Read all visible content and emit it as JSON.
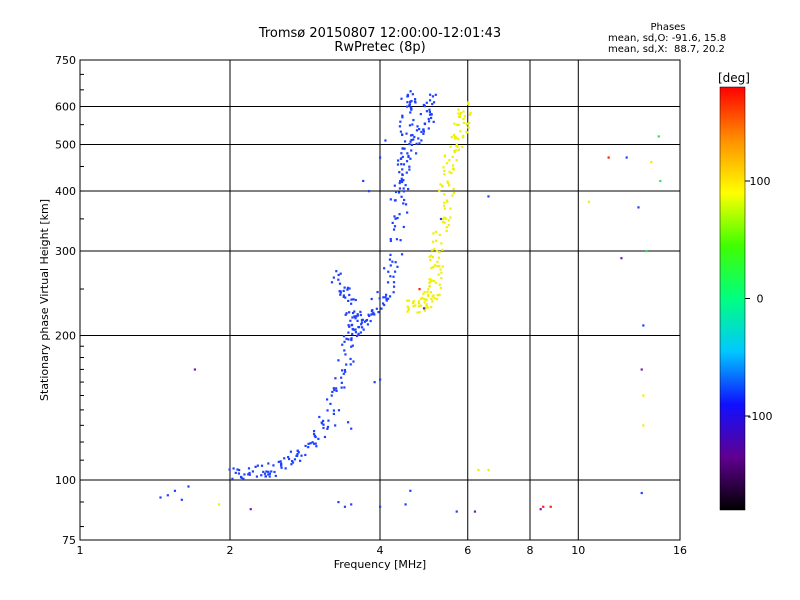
{
  "chart_data": {
    "type": "scatter",
    "title": "Tromsø 20150807 12:00:00-12:01:43",
    "subtitle": "RwPretec (8p)",
    "stats": {
      "heading": "Phases",
      "o_line": "mean, sd,O: -91.6, 15.8",
      "x_line": "mean, sd,X:  88.7, 20.2"
    },
    "xlabel": "Frequency [MHz]",
    "ylabel": "Stationary phase Virtual Height [km]",
    "x_scale": "log",
    "y_scale": "log",
    "xlim": [
      1,
      16
    ],
    "ylim": [
      75,
      750
    ],
    "x_ticks": [
      1,
      2,
      4,
      6,
      8,
      10,
      16
    ],
    "y_ticks": [
      75,
      100,
      200,
      300,
      400,
      500,
      600,
      750
    ],
    "grid": true,
    "colorbar": {
      "label": "[deg]",
      "range": [
        -180,
        180
      ],
      "ticks": [
        100,
        0,
        -100
      ],
      "colors": [
        "#000000",
        "#600090",
        "#1010ff",
        "#00c8ff",
        "#00ff80",
        "#40ff00",
        "#ffff00",
        "#ff9000",
        "#ff0000"
      ]
    },
    "series": [
      {
        "color": "#1e40ff",
        "traces": [
          [
            [
              2.0,
              102
            ],
            [
              2.2,
              104
            ],
            [
              2.4,
              105
            ],
            [
              2.6,
              108
            ],
            [
              2.8,
              113
            ],
            [
              3.0,
              124
            ],
            [
              3.2,
              140
            ],
            [
              3.35,
              165
            ],
            [
              3.45,
              190
            ],
            [
              3.55,
              205
            ],
            [
              3.7,
              212
            ],
            [
              3.9,
              225
            ],
            [
              4.1,
              245
            ],
            [
              4.3,
              290
            ],
            [
              4.4,
              360
            ],
            [
              4.45,
              450
            ],
            [
              4.5,
              540
            ],
            [
              4.55,
              620
            ],
            [
              4.6,
              640
            ]
          ],
          [
            [
              3.3,
              265
            ],
            [
              3.4,
              245
            ],
            [
              3.5,
              225
            ],
            [
              3.6,
              210
            ]
          ],
          [
            [
              4.3,
              380
            ],
            [
              4.4,
              430
            ],
            [
              4.6,
              500
            ],
            [
              4.8,
              540
            ],
            [
              5.0,
              580
            ],
            [
              5.15,
              640
            ]
          ]
        ],
        "scatter": [
          [
            1.45,
            92
          ],
          [
            1.5,
            93
          ],
          [
            1.55,
            95
          ],
          [
            1.6,
            91
          ],
          [
            1.65,
            97
          ],
          [
            3.1,
            123
          ],
          [
            3.25,
            130
          ],
          [
            3.45,
            132
          ],
          [
            3.5,
            128
          ],
          [
            3.9,
            160
          ],
          [
            4.0,
            162
          ],
          [
            3.3,
            90
          ],
          [
            3.4,
            88
          ],
          [
            3.5,
            89
          ],
          [
            4.0,
            88
          ],
          [
            4.5,
            89
          ],
          [
            4.6,
            95
          ],
          [
            5.7,
            86
          ],
          [
            4.0,
            470
          ],
          [
            3.8,
            400
          ],
          [
            3.7,
            420
          ],
          [
            4.1,
            510
          ],
          [
            13.2,
            370
          ],
          [
            13.5,
            210
          ],
          [
            13.4,
            94
          ],
          [
            12.5,
            470
          ],
          [
            6.6,
            390
          ],
          [
            5.3,
            350
          ]
        ]
      },
      {
        "color": "#f0f000",
        "traces": [
          [
            [
              4.6,
              228
            ],
            [
              4.8,
              232
            ],
            [
              5.0,
              238
            ],
            [
              5.1,
              245
            ],
            [
              5.15,
              265
            ],
            [
              5.2,
              290
            ],
            [
              5.3,
              330
            ],
            [
              5.4,
              380
            ],
            [
              5.5,
              430
            ],
            [
              5.6,
              480
            ],
            [
              5.75,
              520
            ],
            [
              5.9,
              560
            ],
            [
              6.0,
              600
            ]
          ]
        ],
        "scatter": [
          [
            6.3,
            105
          ],
          [
            6.6,
            105
          ],
          [
            10.5,
            380
          ],
          [
            13.5,
            130
          ],
          [
            13.5,
            150
          ],
          [
            14.0,
            460
          ],
          [
            1.9,
            89
          ]
        ]
      },
      {
        "color": "#ff2000",
        "scatter": [
          [
            8.5,
            88
          ],
          [
            8.8,
            88
          ],
          [
            11.5,
            470
          ],
          [
            4.8,
            250
          ]
        ]
      },
      {
        "color": "#7020b0",
        "scatter": [
          [
            1.7,
            170
          ],
          [
            2.2,
            87
          ],
          [
            6.2,
            86
          ],
          [
            8.4,
            87
          ],
          [
            12.2,
            290
          ],
          [
            13.4,
            170
          ],
          [
            4.9,
            228
          ]
        ]
      },
      {
        "color": "#30e060",
        "scatter": [
          [
            14.6,
            420
          ],
          [
            14.5,
            520
          ],
          [
            13.7,
            300
          ]
        ]
      }
    ]
  }
}
